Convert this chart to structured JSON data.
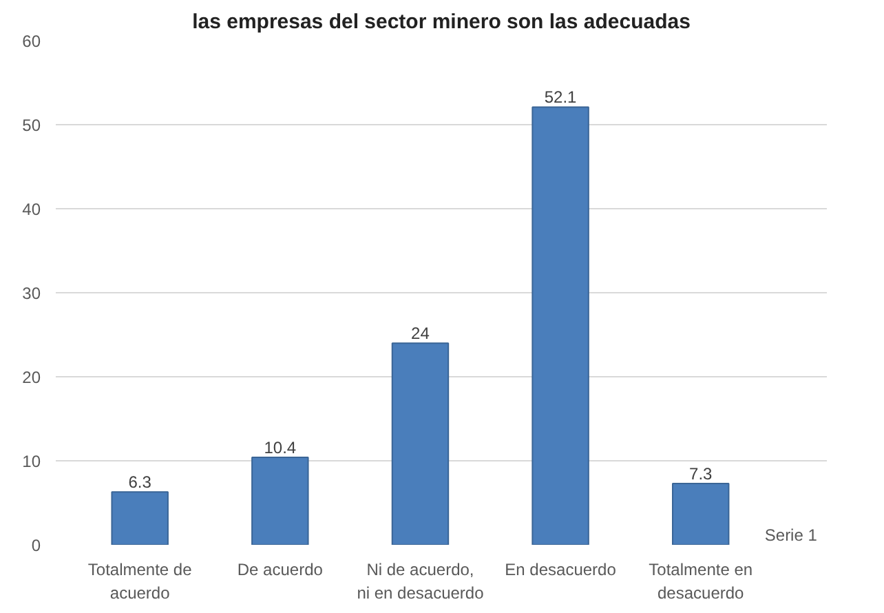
{
  "chart_data": {
    "type": "bar",
    "title": "las empresas del sector minero son las adecuadas",
    "categories": [
      "Totalmente de acuerdo",
      "De acuerdo",
      "Ni de acuerdo, ni en desacuerdo",
      "En desacuerdo",
      "Totalmente en desacuerdo"
    ],
    "series": [
      {
        "name": "Serie 1",
        "color": "#4a7ebb",
        "values": [
          6.3,
          10.4,
          24,
          52.1,
          7.3
        ]
      }
    ],
    "ylim": [
      0,
      60
    ],
    "yticks": [
      0,
      10,
      20,
      30,
      40,
      50,
      60
    ],
    "grid": "y",
    "data_labels": true
  }
}
